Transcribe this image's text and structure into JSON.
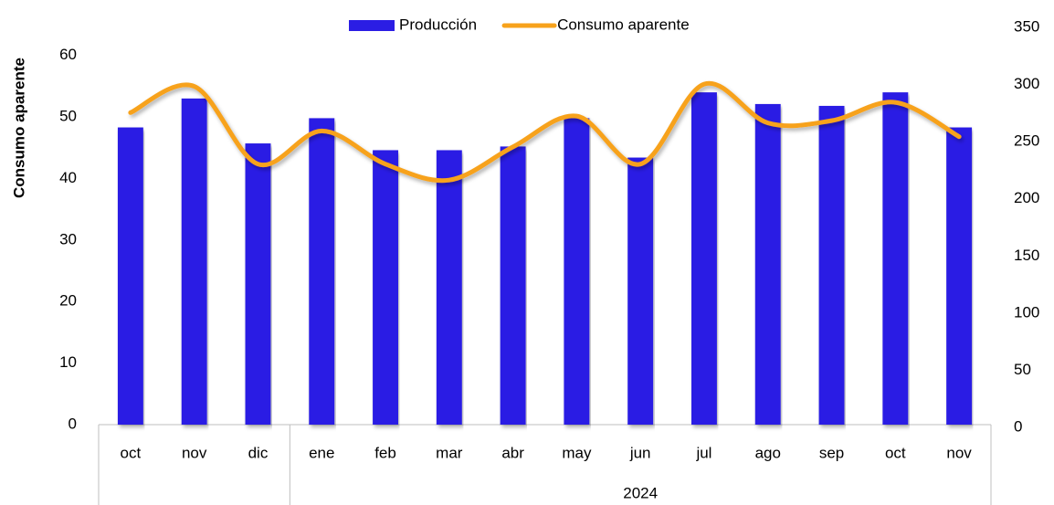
{
  "chart_data": {
    "type": "bar",
    "y_axis_label": "Consumo aparente",
    "categories": [
      "oct",
      "nov",
      "dic",
      "ene",
      "feb",
      "mar",
      "abr",
      "may",
      "jun",
      "jul",
      "ago",
      "sep",
      "oct",
      "nov"
    ],
    "groups": [
      {
        "label": null,
        "count": 3
      },
      {
        "label": "2024",
        "count": 11
      }
    ],
    "series": [
      {
        "name": "Producción",
        "type": "bar",
        "axis": "y",
        "color": "#2b1de4",
        "values": [
          48.3,
          53,
          45.7,
          49.8,
          44.6,
          44.6,
          45.2,
          49.8,
          43.4,
          54,
          52.1,
          51.8,
          54,
          48.3
        ]
      },
      {
        "name": "Consumo aparente",
        "type": "line",
        "axis": "y2",
        "color": "#f7a21b",
        "values": [
          273,
          296,
          228,
          257,
          228,
          214,
          243,
          270,
          228,
          298,
          264,
          266,
          282,
          252
        ]
      }
    ],
    "ylim": [
      0,
      65
    ],
    "yticks": [
      0,
      10,
      20,
      30,
      40,
      50,
      60
    ],
    "y2lim": [
      0,
      350
    ],
    "y2ticks": [
      0,
      50,
      100,
      150,
      200,
      250,
      300,
      350
    ],
    "legend": "top"
  }
}
